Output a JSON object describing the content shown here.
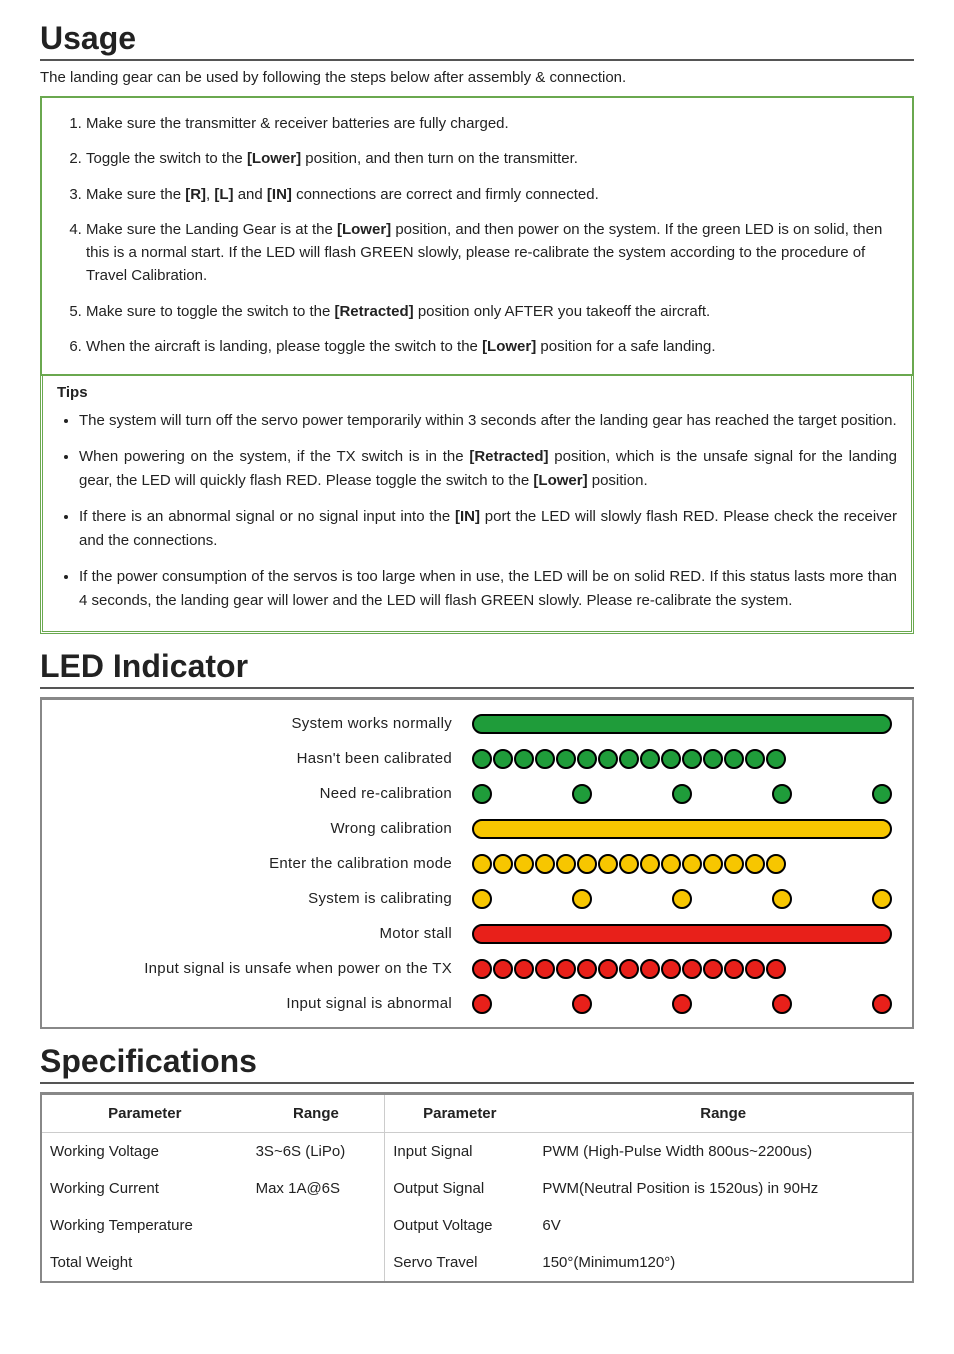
{
  "usage": {
    "title": "Usage",
    "intro": "The landing gear can be used by following the steps below after assembly & connection.",
    "steps": [
      "Make sure the transmitter & receiver batteries are fully charged.",
      "Toggle the switch to the <b>[Lower]</b> position, and then turn on the transmitter.",
      "Make sure the <b>[R]</b>, <b>[L]</b> and <b>[IN]</b> connections are correct and firmly connected.",
      "Make sure the Landing Gear is at the <b>[Lower]</b> position, and then power on the system. If the green LED is on solid, then this is a normal start. If the LED will flash GREEN slowly, please re-calibrate the system according to the procedure of Travel Calibration.",
      "Make sure to toggle the switch to the <b>[Retracted]</b> position only AFTER you takeoff the aircraft.",
      "When the aircraft is landing, please toggle the switch to the <b>[Lower]</b> position for a safe landing."
    ],
    "tips_label": "Tips",
    "tips": [
      "The system will turn off the servo power temporarily within 3 seconds after the landing gear has reached the target position.",
      "When powering on the system, if the TX switch is in the <b>[Retracted]</b> position, which is the unsafe signal for the landing gear, the LED will quickly flash RED. Please toggle the switch to the <b>[Lower]</b> position.",
      "If there is an abnormal signal or no signal input into the <b>[IN]</b> port the LED will slowly flash RED. Please check the receiver and the connections.",
      "If the power consumption of the servos is too large when in use, the LED will be on solid RED. If this status lasts more than 4 seconds, the landing gear will lower and the LED will flash GREEN slowly. Please re-calibrate the system."
    ]
  },
  "led": {
    "title": "LED Indicator",
    "colors": {
      "green": "#1f9c3a",
      "yellow": "#f7c600",
      "red": "#e8201a",
      "stroke": "#000000"
    },
    "rows": [
      {
        "label": "System works normally",
        "type": "bar",
        "color": "green"
      },
      {
        "label": "Hasn't been calibrated",
        "type": "dense",
        "count": 15,
        "color": "green"
      },
      {
        "label": "Need re-calibration",
        "type": "sparse",
        "count": 5,
        "color": "green"
      },
      {
        "label": "Wrong calibration",
        "type": "bar",
        "color": "yellow"
      },
      {
        "label": "Enter the calibration mode",
        "type": "dense",
        "count": 15,
        "color": "yellow"
      },
      {
        "label": "System is calibrating",
        "type": "sparse",
        "count": 5,
        "color": "yellow"
      },
      {
        "label": "Motor stall",
        "type": "bar",
        "color": "red"
      },
      {
        "label": "Input signal is unsafe when power on the TX",
        "type": "dense",
        "count": 15,
        "color": "red"
      },
      {
        "label": "Input signal is abnormal",
        "type": "sparse",
        "count": 5,
        "color": "red"
      }
    ]
  },
  "spec": {
    "title": "Specifications",
    "headers": [
      "Parameter",
      "Range",
      "Parameter",
      "Range"
    ],
    "rows": [
      [
        "Working Voltage",
        "3S~6S (LiPo)",
        "Input Signal",
        "PWM (High-Pulse Width 800us~2200us)"
      ],
      [
        "Working Current",
        "Max 1A@6S",
        "Output Signal",
        "PWM(Neutral Position is 1520us) in 90Hz"
      ],
      [
        "Working Temperature",
        "",
        "Output Voltage",
        "6V"
      ],
      [
        "Total Weight",
        "",
        "Servo Travel",
        "150°(Minimum120°)"
      ]
    ]
  }
}
